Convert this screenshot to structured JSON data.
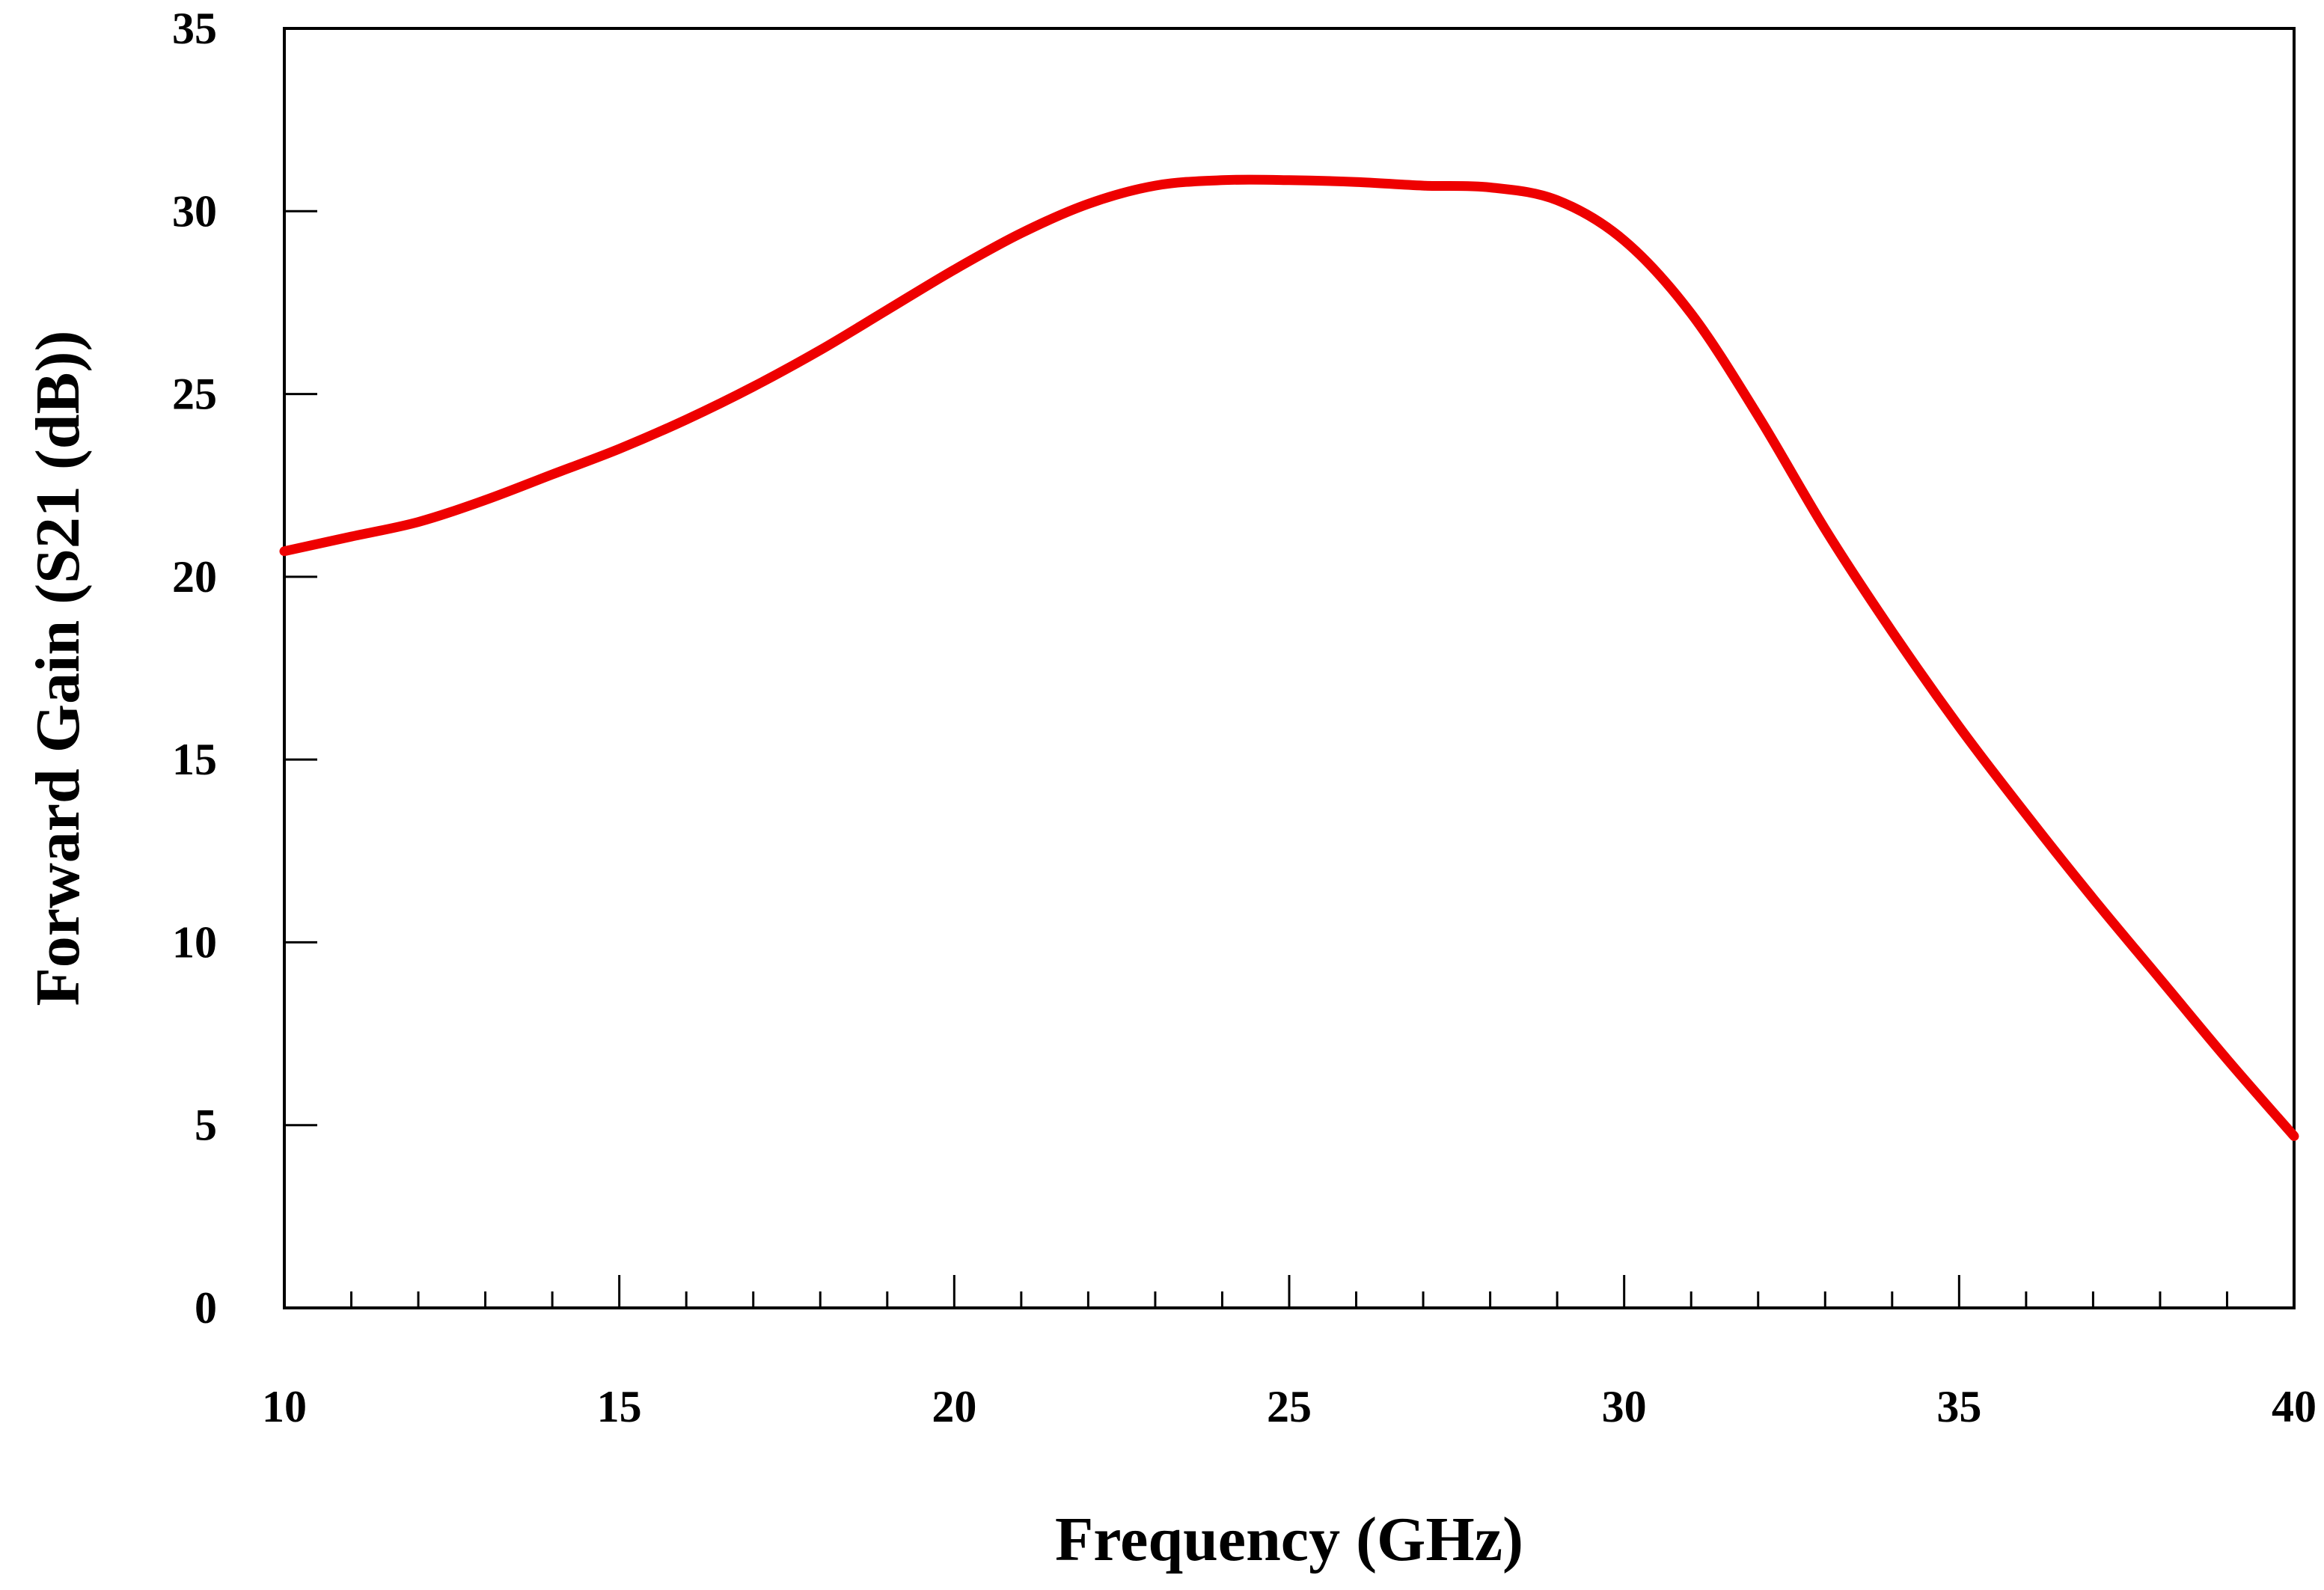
{
  "chart_data": {
    "type": "line",
    "title": "",
    "xlabel": "Frequency (GHz)",
    "ylabel": "Forward Gain (S21 (dB))",
    "xlim": [
      10,
      40
    ],
    "ylim": [
      0,
      35
    ],
    "xticks": [
      10,
      15,
      20,
      25,
      30,
      35,
      40
    ],
    "xticks_minor": [
      11,
      12,
      13,
      14,
      16,
      17,
      18,
      19,
      21,
      22,
      23,
      24,
      26,
      27,
      28,
      29,
      31,
      32,
      33,
      34,
      36,
      37,
      38,
      39
    ],
    "yticks": [
      0,
      5,
      10,
      15,
      20,
      25,
      30,
      35
    ],
    "grid": false,
    "series": [
      {
        "color": "#ee0000",
        "x": [
          10,
          11,
          12,
          13,
          14,
          15,
          16,
          17,
          18,
          19,
          20,
          21,
          22,
          23,
          24,
          25,
          26,
          27,
          28,
          29,
          30,
          31,
          32,
          33,
          34,
          35,
          36,
          37,
          38,
          39,
          40
        ],
        "y": [
          20.7,
          21.1,
          21.5,
          22.1,
          22.8,
          23.5,
          24.3,
          25.2,
          26.2,
          27.3,
          28.4,
          29.4,
          30.2,
          30.7,
          30.85,
          30.85,
          30.8,
          30.7,
          30.65,
          30.3,
          29.2,
          27.2,
          24.4,
          21.3,
          18.5,
          15.9,
          13.5,
          11.2,
          9.0,
          6.8,
          4.7
        ]
      }
    ]
  }
}
